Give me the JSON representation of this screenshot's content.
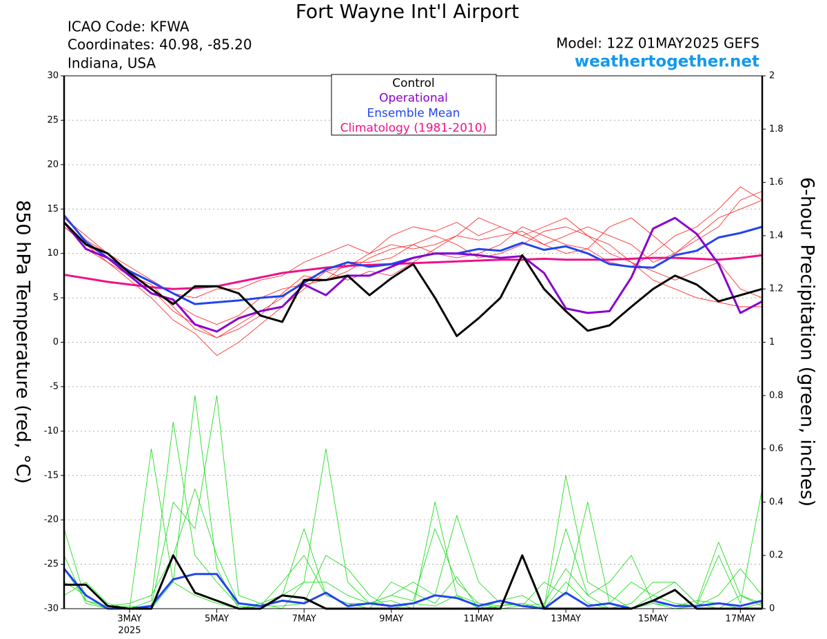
{
  "chart_data": {
    "type": "line",
    "title": "Fort Wayne Int'l Airport",
    "info_left": [
      "ICAO Code: KFWA",
      "Coordinates: 40.98, -85.20",
      "Indiana, USA"
    ],
    "model": "Model: 12Z 01MAY2025 GEFS",
    "source": "weathertogether.net",
    "ylabel": "850 hPa Temperature (red, °C)",
    "y2label": "6-hour Precipitation (green, inches)",
    "x_year_label": "2025",
    "x": [
      1.5,
      2,
      2.5,
      3,
      3.5,
      4,
      4.5,
      5,
      5.5,
      6,
      6.5,
      7,
      7.5,
      8,
      8.5,
      9,
      9.5,
      10,
      10.5,
      11,
      11.5,
      12,
      12.5,
      13,
      13.5,
      14,
      14.5,
      15,
      15.5,
      16,
      16.5,
      17,
      17.5
    ],
    "xlim": [
      1.5,
      17.5
    ],
    "xticks": [
      {
        "value": 3,
        "label": "3MAY"
      },
      {
        "value": 5,
        "label": "5MAY"
      },
      {
        "value": 7,
        "label": "7MAY"
      },
      {
        "value": 9,
        "label": "9MAY"
      },
      {
        "value": 11,
        "label": "11MAY"
      },
      {
        "value": 13,
        "label": "13MAY"
      },
      {
        "value": 15,
        "label": "15MAY"
      },
      {
        "value": 17,
        "label": "17MAY"
      }
    ],
    "ylim": [
      -30,
      30
    ],
    "yticks": [
      -30,
      -25,
      -20,
      -15,
      -10,
      -5,
      0,
      5,
      10,
      15,
      20,
      25,
      30
    ],
    "y2lim": [
      0,
      2
    ],
    "y2ticks": [
      0,
      0.2,
      0.4,
      0.6,
      0.8,
      1,
      1.2,
      1.4,
      1.6,
      1.8,
      2
    ],
    "grid": true,
    "member_temperature_color": "#ff3030",
    "member_precipitation_color": "#22dd22",
    "series": [
      {
        "name": "Control",
        "color": "#000000",
        "values": [
          13.5,
          11,
          10,
          7.8,
          6,
          4.3,
          6.3,
          6.3,
          5.5,
          3,
          2.3,
          7,
          7,
          7.5,
          5.3,
          7.2,
          8.8,
          5,
          0.7,
          2.7,
          5,
          9.8,
          6,
          3.5,
          1.3,
          1.9,
          4,
          6,
          7.5,
          6.5,
          4.6,
          5.3,
          6
        ],
        "precip_values": [
          0.09,
          0.09,
          0.01,
          0,
          0,
          0.2,
          0.06,
          0.03,
          0,
          0,
          0.05,
          0.04,
          0,
          0,
          0,
          0,
          0,
          0,
          0,
          0,
          0,
          0.2,
          0,
          0,
          0,
          0,
          0,
          0.03,
          0.07,
          0,
          0,
          0,
          0
        ]
      },
      {
        "name": "Operational",
        "color": "#8800cc",
        "values": [
          13.5,
          10.5,
          9.5,
          7.5,
          5.5,
          4.8,
          2,
          1.2,
          2.7,
          3.5,
          4,
          6.5,
          5.3,
          7.5,
          7.5,
          8.5,
          9.5,
          10,
          10,
          9.8,
          9.5,
          9.7,
          7.8,
          3.8,
          3.3,
          3.5,
          7.3,
          12.8,
          14,
          12.2,
          8.8,
          3.3,
          4.6
        ]
      },
      {
        "name": "Ensemble Mean",
        "color": "#2244ee",
        "values": [
          14.3,
          11.3,
          9.5,
          8,
          6.8,
          5.5,
          4.3,
          4.5,
          4.7,
          5,
          5.2,
          6.7,
          8.2,
          9,
          8.5,
          8.8,
          9.5,
          10,
          10,
          10.5,
          10.3,
          11.2,
          10.4,
          10.8,
          10,
          8.8,
          8.5,
          8.4,
          9.8,
          10.3,
          11.8,
          12.3,
          13
        ],
        "precip_values": [
          0.15,
          0.05,
          0,
          0,
          0.01,
          0.11,
          0.13,
          0.13,
          0.02,
          0.01,
          0.03,
          0.02,
          0.06,
          0.01,
          0.02,
          0.01,
          0.02,
          0.05,
          0.04,
          0.01,
          0.03,
          0.01,
          0,
          0.06,
          0.01,
          0.02,
          0,
          0.03,
          0.01,
          0.01,
          0.02,
          0.01,
          0.03
        ]
      },
      {
        "name": "Climatology (1981-2010)",
        "color": "#ee1188",
        "values": [
          7.6,
          7.2,
          6.8,
          6.5,
          6.2,
          6,
          6.1,
          6.3,
          6.8,
          7.3,
          7.8,
          8.1,
          8.4,
          8.6,
          8.7,
          8.8,
          8.9,
          9,
          9.1,
          9.2,
          9.3,
          9.3,
          9.4,
          9.3,
          9.3,
          9.3,
          9.4,
          9.5,
          9.5,
          9.4,
          9.3,
          9.5,
          9.8
        ]
      }
    ],
    "temperature_members": [
      [
        13,
        11,
        9.5,
        8,
        6,
        3.5,
        2,
        0.5,
        2,
        3.5,
        5,
        7,
        8,
        8.5,
        10,
        11,
        10.5,
        11,
        12,
        11.5,
        12,
        12.5,
        11,
        12,
        13,
        12,
        11,
        9,
        10,
        12,
        14,
        15,
        16
      ],
      [
        14,
        11.5,
        10,
        7.5,
        5.5,
        4.5,
        3,
        2,
        3,
        5,
        6,
        6.5,
        7,
        9,
        9,
        9.5,
        11,
        12,
        11,
        9.5,
        10,
        11,
        12.5,
        13,
        12,
        11,
        9,
        8,
        7,
        8,
        9,
        6,
        5
      ],
      [
        13.5,
        10.5,
        9,
        7,
        5,
        2.5,
        1,
        -1.5,
        0,
        2,
        4,
        6,
        8,
        7,
        8,
        7.5,
        9,
        10.5,
        12,
        14,
        13,
        12,
        11,
        10,
        10.5,
        13,
        14,
        12,
        10,
        11.5,
        13,
        16,
        17
      ],
      [
        14,
        12,
        10,
        8.5,
        7,
        5.5,
        5,
        6,
        6,
        7,
        7.5,
        9,
        10,
        11,
        10,
        12,
        13,
        12.5,
        13.5,
        12,
        13,
        12,
        13,
        14,
        12,
        10,
        9,
        7,
        6,
        5,
        4.5,
        4,
        4
      ],
      [
        13,
        11,
        9,
        7.5,
        6.5,
        4,
        1.5,
        0.5,
        1.5,
        3,
        5.5,
        7.5,
        7,
        8,
        9.5,
        10.5,
        11,
        10,
        9.5,
        10,
        11,
        13,
        12,
        11,
        10.5,
        9,
        8.5,
        10,
        12,
        13,
        15,
        17.5,
        16
      ]
    ],
    "precipitation_members": [
      [
        0.1,
        0.05,
        0,
        0,
        0.03,
        0.7,
        0.2,
        0.1,
        0.01,
        0,
        0.05,
        0.3,
        0.05,
        0.02,
        0,
        0.1,
        0.06,
        0.02,
        0.12,
        0,
        0.01,
        0.02,
        0,
        0.1,
        0.02,
        0,
        0,
        0.05,
        0.1,
        0.02,
        0,
        0.05,
        0.01
      ],
      [
        0.2,
        0.02,
        0,
        0.01,
        0,
        0.1,
        0.8,
        0.15,
        0,
        0.02,
        0,
        0.1,
        0.6,
        0.1,
        0.02,
        0.03,
        0,
        0.4,
        0.05,
        0,
        0.03,
        0.05,
        0,
        0.5,
        0.1,
        0.05,
        0,
        0.02,
        0.01,
        0.03,
        0.02,
        0,
        0.02
      ],
      [
        0.3,
        0.03,
        0,
        0,
        0.01,
        0.4,
        0.3,
        0.8,
        0.05,
        0.02,
        0.05,
        0.1,
        0.1,
        0.05,
        0.02,
        0.05,
        0.1,
        0.05,
        0.35,
        0.1,
        0.02,
        0.01,
        0.1,
        0.05,
        0.4,
        0.02,
        0.1,
        0.05,
        0.02,
        0.01,
        0.2,
        0.02,
        0.45
      ],
      [
        0.05,
        0.1,
        0.02,
        0,
        0.6,
        0.1,
        0.05,
        0.02,
        0,
        0.01,
        0.01,
        0.02,
        0.2,
        0.15,
        0.05,
        0,
        0.02,
        0.01,
        0.05,
        0.02,
        0,
        0.01,
        0.02,
        0.15,
        0.05,
        0.1,
        0.2,
        0.02,
        0,
        0.01,
        0.05,
        0.15,
        0.05
      ],
      [
        0.15,
        0.03,
        0.01,
        0.02,
        0.05,
        0.2,
        0.45,
        0.2,
        0.02,
        0.01,
        0.1,
        0.2,
        0.05,
        0.02,
        0.02,
        0.05,
        0.03,
        0.3,
        0.1,
        0.02,
        0.01,
        0.02,
        0,
        0.3,
        0.05,
        0,
        0.02,
        0.1,
        0.1,
        0.02,
        0.25,
        0.05,
        0.02
      ]
    ]
  }
}
